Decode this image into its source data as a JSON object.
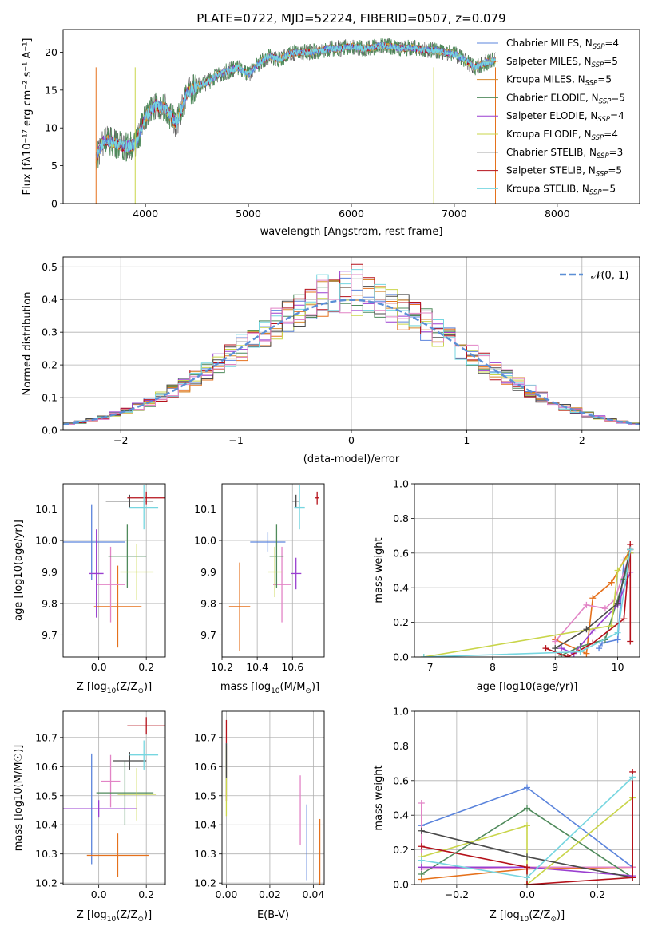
{
  "figure": {
    "title": "PLATE=0722, MJD=52224, FIBERID=0507, z=0.079"
  },
  "colors": {
    "series": [
      "#5b84dc",
      "#e5711c",
      "#d7882b",
      "#4f8a5b",
      "#9a3fd0",
      "#c9d54a",
      "#4a4a4a",
      "#b5111a",
      "#76d6e0"
    ],
    "extra_pink": "#e284c6",
    "grid": "#b0b0b0",
    "gauss": "#5b8fd6"
  },
  "chart_data": [
    {
      "id": "spectrum",
      "type": "line",
      "title": "",
      "xlabel": "wavelength [Angstrom, rest frame]",
      "ylabel": "Flux [f_λ10^−17 erg cm^−2 s^−1 A^−1]",
      "xlim": [
        3200,
        8800
      ],
      "ylim": [
        0,
        23
      ],
      "xticks": [
        4000,
        5000,
        6000,
        7000,
        8000
      ],
      "yticks": [
        0,
        5,
        10,
        15,
        20
      ],
      "grid": false,
      "legend_position": "top-right",
      "spectrum_shape_x": [
        3520,
        3600,
        3700,
        3800,
        3900,
        4000,
        4100,
        4200,
        4300,
        4400,
        4500,
        4600,
        4700,
        4800,
        4900,
        5000,
        5100,
        5200,
        5300,
        5400,
        5500,
        5600,
        5700,
        5800,
        5900,
        6000,
        6100,
        6200,
        6300,
        6400,
        6500,
        6600,
        6700,
        6800,
        6900,
        7000,
        7100,
        7200,
        7300,
        7400
      ],
      "spectrum_shape_y": [
        6.0,
        8.5,
        8.0,
        7.5,
        7.8,
        11.5,
        13.0,
        12.5,
        10.5,
        14.5,
        15.5,
        16.0,
        17.0,
        17.5,
        18.0,
        17.0,
        18.5,
        19.5,
        19.0,
        19.8,
        20.0,
        20.0,
        20.2,
        20.5,
        20.5,
        20.8,
        20.5,
        20.6,
        20.9,
        20.7,
        20.5,
        20.6,
        20.3,
        20.3,
        20.0,
        19.8,
        19.0,
        18.0,
        18.6,
        19.0
      ],
      "series": [
        {
          "name": "Chabrier MILES, N_SSP=4",
          "label_main": "Chabrier MILES, N",
          "label_sub": "SSP",
          "label_tail": "=4"
        },
        {
          "name": "Salpeter MILES, N_SSP=5",
          "label_main": "Salpeter MILES, N",
          "label_sub": "SSP",
          "label_tail": "=5"
        },
        {
          "name": "Kroupa MILES, N_SSP=5",
          "label_main": "Kroupa MILES, N",
          "label_sub": "SSP",
          "label_tail": "=5"
        },
        {
          "name": "Chabrier ELODIE, N_SSP=5",
          "label_main": "Chabrier ELODIE, N",
          "label_sub": "SSP",
          "label_tail": "=5"
        },
        {
          "name": "Salpeter ELODIE, N_SSP=4",
          "label_main": "Salpeter ELODIE, N",
          "label_sub": "SSP",
          "label_tail": "=4"
        },
        {
          "name": "Kroupa ELODIE, N_SSP=4",
          "label_main": "Kroupa ELODIE, N",
          "label_sub": "SSP",
          "label_tail": "=4"
        },
        {
          "name": "Chabrier STELIB, N_SSP=3",
          "label_main": "Chabrier STELIB, N",
          "label_sub": "SSP",
          "label_tail": "=3"
        },
        {
          "name": "Salpeter STELIB, N_SSP=5",
          "label_main": "Salpeter STELIB, N",
          "label_sub": "SSP",
          "label_tail": "=5"
        },
        {
          "name": "Kroupa STELIB, N_SSP=5",
          "label_main": "Kroupa STELIB, N",
          "label_sub": "SSP",
          "label_tail": "=5"
        }
      ]
    },
    {
      "id": "residuals",
      "type": "histogram",
      "title": "",
      "xlabel": "(data-model)/error",
      "ylabel": "Normed distribution",
      "xlim": [
        -2.5,
        2.5
      ],
      "ylim": [
        0,
        0.53
      ],
      "xticks": [
        -2,
        -1,
        0,
        1,
        2
      ],
      "yticks": [
        0.0,
        0.1,
        0.2,
        0.3,
        0.4,
        0.5
      ],
      "grid": true,
      "legend_position": "top-right",
      "legend_label": "𝒩(0, 1)",
      "bin_width": 0.1,
      "gaussian": {
        "mean": 0,
        "sigma": 1
      }
    },
    {
      "id": "age_vs_Z",
      "type": "scatter",
      "xlabel_main": "Z [log",
      "xlabel_tail": "(Z/Z",
      "xlabel_end": ")]",
      "ylabel": "age  [log10(age/yr)]",
      "xlim": [
        -0.15,
        0.28
      ],
      "ylim": [
        9.63,
        10.18
      ],
      "xticks": [
        0.0,
        0.2
      ],
      "yticks": [
        9.7,
        9.8,
        9.9,
        10.0,
        10.1
      ],
      "grid": true,
      "points": [
        {
          "x": -0.03,
          "xerr": 0.14,
          "y": 9.995,
          "yerr": 0.12,
          "color": "#5b84dc"
        },
        {
          "x": 0.08,
          "xerr": 0.1,
          "y": 9.79,
          "yerr": 0.13,
          "color": "#e5711c"
        },
        {
          "x": 0.05,
          "xerr": 0.06,
          "y": 9.86,
          "yerr": 0.12,
          "color": "#e284c6"
        },
        {
          "x": 0.12,
          "xerr": 0.08,
          "y": 9.95,
          "yerr": 0.1,
          "color": "#4f8a5b"
        },
        {
          "x": -0.01,
          "xerr": 0.03,
          "y": 9.895,
          "yerr": 0.14,
          "color": "#9a3fd0"
        },
        {
          "x": 0.16,
          "xerr": 0.07,
          "y": 9.9,
          "yerr": 0.09,
          "color": "#c9d54a"
        },
        {
          "x": 0.13,
          "xerr": 0.1,
          "y": 10.125,
          "yerr": 0.02,
          "color": "#4a4a4a"
        },
        {
          "x": 0.2,
          "xerr": 0.08,
          "y": 10.135,
          "yerr": 0.02,
          "color": "#b5111a"
        },
        {
          "x": 0.19,
          "xerr": 0.06,
          "y": 10.105,
          "yerr": 0.07,
          "color": "#76d6e0"
        }
      ]
    },
    {
      "id": "age_vs_mass",
      "type": "scatter",
      "xlabel_main": "mass [log",
      "xlabel_tail": "(M/M",
      "xlabel_end": ")]",
      "ylabel": "",
      "xlim": [
        10.2,
        10.78
      ],
      "ylim": [
        9.63,
        10.18
      ],
      "xticks": [
        10.2,
        10.4,
        10.6
      ],
      "yticks": [
        9.7,
        9.8,
        9.9,
        10.0,
        10.1
      ],
      "grid": true,
      "points": [
        {
          "x": 10.46,
          "xerr": 0.1,
          "y": 9.995,
          "yerr": 0.03,
          "color": "#5b84dc"
        },
        {
          "x": 10.3,
          "xerr": 0.06,
          "y": 9.79,
          "yerr": 0.14,
          "color": "#e5711c"
        },
        {
          "x": 10.54,
          "xerr": 0.05,
          "y": 9.86,
          "yerr": 0.12,
          "color": "#e284c6"
        },
        {
          "x": 10.51,
          "xerr": 0.04,
          "y": 9.95,
          "yerr": 0.1,
          "color": "#4f8a5b"
        },
        {
          "x": 10.62,
          "xerr": 0.03,
          "y": 9.895,
          "yerr": 0.05,
          "color": "#9a3fd0"
        },
        {
          "x": 10.5,
          "xerr": 0.04,
          "y": 9.9,
          "yerr": 0.08,
          "color": "#c9d54a"
        },
        {
          "x": 10.62,
          "xerr": 0.02,
          "y": 10.125,
          "yerr": 0.02,
          "color": "#4a4a4a"
        },
        {
          "x": 10.74,
          "xerr": 0.01,
          "y": 10.135,
          "yerr": 0.02,
          "color": "#b5111a"
        },
        {
          "x": 10.64,
          "xerr": 0.03,
          "y": 10.105,
          "yerr": 0.07,
          "color": "#76d6e0"
        }
      ]
    },
    {
      "id": "weight_vs_age",
      "type": "line",
      "xlabel": "age  [log10(age/yr)]",
      "ylabel": "mass weight",
      "xlim": [
        6.75,
        10.35
      ],
      "ylim": [
        0,
        1
      ],
      "xticks": [
        7,
        8,
        9,
        10
      ],
      "yticks": [
        0.0,
        0.2,
        0.4,
        0.6,
        0.8,
        1.0
      ],
      "grid": true,
      "series": [
        {
          "color": "#5b84dc",
          "x": [
            9.7,
            9.75,
            10.0,
            10.1,
            10.2
          ],
          "y": [
            0.05,
            0.08,
            0.1,
            0.56,
            0.6
          ]
        },
        {
          "color": "#e5711c",
          "x": [
            9.0,
            9.5,
            9.6,
            9.9,
            10.2
          ],
          "y": [
            0.1,
            0.02,
            0.34,
            0.43,
            0.62
          ]
        },
        {
          "color": "#e284c6",
          "x": [
            9.0,
            9.5,
            9.8,
            9.95,
            10.2
          ],
          "y": [
            0.09,
            0.3,
            0.28,
            0.33,
            0.6
          ]
        },
        {
          "color": "#4f8a5b",
          "x": [
            9.1,
            9.4,
            9.8,
            10.1,
            10.2
          ],
          "y": [
            0.01,
            0.06,
            0.1,
            0.45,
            0.6
          ]
        },
        {
          "color": "#9a3fd0",
          "x": [
            9.1,
            9.3,
            9.6,
            10.0,
            10.2
          ],
          "y": [
            0.05,
            0.02,
            0.15,
            0.3,
            0.49
          ]
        },
        {
          "color": "#c9d54a",
          "x": [
            6.9,
            9.9,
            10.0,
            10.2
          ],
          "y": [
            0.0,
            0.18,
            0.5,
            0.6
          ]
        },
        {
          "color": "#4a4a4a",
          "x": [
            9.0,
            9.5,
            10.0,
            10.2
          ],
          "y": [
            0.05,
            0.16,
            0.31,
            0.62
          ]
        },
        {
          "color": "#b5111a",
          "x": [
            8.85,
            9.2,
            9.6,
            10.1,
            10.2,
            10.2
          ],
          "y": [
            0.05,
            0.0,
            0.08,
            0.22,
            0.65,
            0.09
          ]
        },
        {
          "color": "#76d6e0",
          "x": [
            6.9,
            9.4,
            10.0,
            10.2
          ],
          "y": [
            0.0,
            0.03,
            0.14,
            0.62
          ]
        }
      ]
    },
    {
      "id": "mass_vs_Z",
      "type": "scatter",
      "xlabel_main": "Z [log",
      "xlabel_tail": "(Z/Z",
      "xlabel_end": ")]",
      "ylabel": "mass [log10(M/M☉)]",
      "xlim": [
        -0.15,
        0.28
      ],
      "ylim": [
        10.195,
        10.79
      ],
      "xticks": [
        0.0,
        0.2
      ],
      "yticks": [
        10.2,
        10.3,
        10.4,
        10.5,
        10.6,
        10.7
      ],
      "grid": true,
      "points": [
        {
          "x": -0.03,
          "xerr": 0.12,
          "y": 10.455,
          "yerr": 0.19,
          "color": "#5b84dc"
        },
        {
          "x": 0.08,
          "xerr": 0.13,
          "y": 10.295,
          "yerr": 0.075,
          "color": "#e5711c"
        },
        {
          "x": 0.05,
          "xerr": 0.04,
          "y": 10.55,
          "yerr": 0.09,
          "color": "#e284c6"
        },
        {
          "x": 0.11,
          "xerr": 0.12,
          "y": 10.51,
          "yerr": 0.11,
          "color": "#4f8a5b"
        },
        {
          "x": 0.0,
          "xerr": 0.16,
          "y": 10.455,
          "yerr": 0.03,
          "color": "#9a3fd0"
        },
        {
          "x": 0.16,
          "xerr": 0.08,
          "y": 10.505,
          "yerr": 0.09,
          "color": "#c9d54a"
        },
        {
          "x": 0.13,
          "xerr": 0.07,
          "y": 10.62,
          "yerr": 0.03,
          "color": "#4a4a4a"
        },
        {
          "x": 0.2,
          "xerr": 0.08,
          "y": 10.74,
          "yerr": 0.03,
          "color": "#b5111a"
        },
        {
          "x": 0.19,
          "xerr": 0.06,
          "y": 10.64,
          "yerr": 0.05,
          "color": "#76d6e0"
        }
      ]
    },
    {
      "id": "mass_vs_EBV",
      "type": "scatter",
      "xlabel": "E(B-V)",
      "ylabel": "",
      "xlim": [
        -0.002,
        0.045
      ],
      "ylim": [
        10.195,
        10.79
      ],
      "xticks": [
        0.0,
        0.02,
        0.04
      ],
      "yticks": [
        10.2,
        10.3,
        10.4,
        10.5,
        10.6,
        10.7
      ],
      "grid": true,
      "points": [
        {
          "x": 0.0,
          "y": 10.62,
          "yerr": 0.14,
          "color": "#b5111a"
        },
        {
          "x": 0.0,
          "y": 10.6,
          "yerr": 0.08,
          "color": "#76d6e0"
        },
        {
          "x": 0.0,
          "y": 10.55,
          "yerr": 0.12,
          "color": "#c9d54a"
        },
        {
          "x": 0.0,
          "y": 10.62,
          "yerr": 0.06,
          "color": "#4a4a4a"
        },
        {
          "x": 0.034,
          "y": 10.45,
          "yerr": 0.12,
          "color": "#e284c6"
        },
        {
          "x": 0.037,
          "y": 10.34,
          "yerr": 0.13,
          "color": "#5b84dc"
        },
        {
          "x": 0.043,
          "y": 10.3,
          "yerr": 0.12,
          "color": "#e5711c"
        }
      ]
    },
    {
      "id": "weight_vs_Z",
      "type": "line",
      "xlabel_main": "Z [log",
      "xlabel_tail": "(Z/Z",
      "xlabel_end": ")]",
      "ylabel": "mass weight",
      "xlim": [
        -0.32,
        0.32
      ],
      "ylim": [
        0,
        1
      ],
      "xticks": [
        -0.2,
        0.0,
        0.2
      ],
      "yticks": [
        0.0,
        0.2,
        0.4,
        0.6,
        0.8,
        1.0
      ],
      "grid": true,
      "series": [
        {
          "color": "#5b84dc",
          "x": [
            -0.3,
            0.0,
            0.3
          ],
          "y": [
            0.34,
            0.56,
            0.1
          ]
        },
        {
          "color": "#e5711c",
          "x": [
            -0.3,
            0.0,
            0.3
          ],
          "y": [
            0.03,
            0.09,
            0.1
          ]
        },
        {
          "color": "#e284c6",
          "x": [
            -0.3,
            -0.3,
            0.0,
            0.3
          ],
          "y": [
            0.47,
            0.09,
            0.1,
            0.1
          ]
        },
        {
          "color": "#4f8a5b",
          "x": [
            -0.3,
            0.0,
            0.3
          ],
          "y": [
            0.06,
            0.44,
            0.04
          ]
        },
        {
          "color": "#9a3fd0",
          "x": [
            -0.3,
            0.0,
            0.3
          ],
          "y": [
            0.1,
            0.1,
            0.05
          ]
        },
        {
          "color": "#c9d54a",
          "x": [
            -0.3,
            0.0,
            0.0,
            0.3
          ],
          "y": [
            0.16,
            0.34,
            0.0,
            0.5
          ]
        },
        {
          "color": "#4a4a4a",
          "x": [
            -0.3,
            0.0,
            0.3
          ],
          "y": [
            0.31,
            0.16,
            0.04
          ]
        },
        {
          "color": "#b5111a",
          "x": [
            -0.3,
            0.0,
            0.0,
            0.3,
            0.3
          ],
          "y": [
            0.22,
            0.1,
            0.0,
            0.04,
            0.65
          ]
        },
        {
          "color": "#76d6e0",
          "x": [
            -0.3,
            0.0,
            0.3
          ],
          "y": [
            0.14,
            0.04,
            0.62
          ]
        }
      ]
    }
  ]
}
